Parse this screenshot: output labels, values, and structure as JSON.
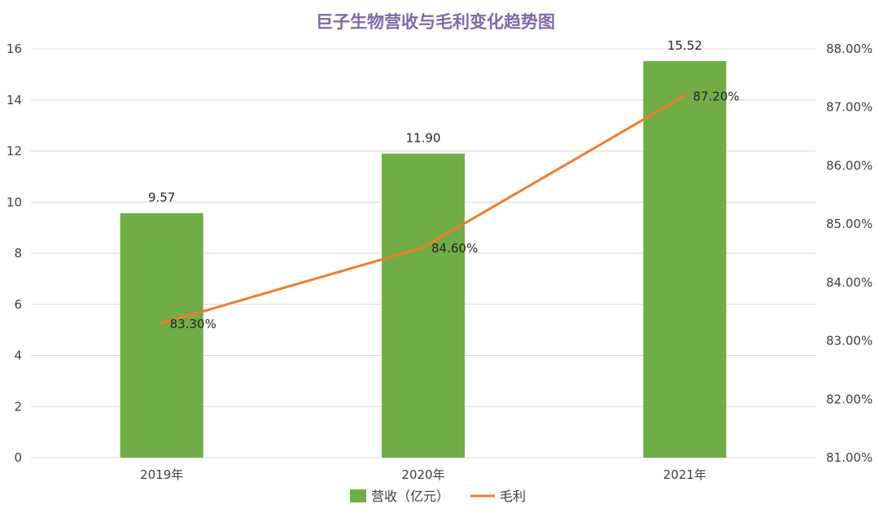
{
  "chart_data": {
    "type": "bar+line",
    "title": "巨子生物营收与毛利变化趋势图",
    "categories": [
      "2019年",
      "2020年",
      "2021年"
    ],
    "series": [
      {
        "name": "营收（亿元）",
        "type": "bar",
        "axis": "left",
        "values": [
          9.57,
          11.9,
          15.52
        ],
        "labels": [
          "9.57",
          "11.90",
          "15.52"
        ],
        "color": "#70ad47"
      },
      {
        "name": "毛利",
        "type": "line",
        "axis": "right",
        "values": [
          83.3,
          84.6,
          87.2
        ],
        "labels": [
          "83.30%",
          "84.60%",
          "87.20%"
        ],
        "color": "#ed7d31"
      }
    ],
    "left_axis": {
      "ylim": [
        0,
        16
      ],
      "ticks": [
        "0",
        "2",
        "4",
        "6",
        "8",
        "10",
        "12",
        "14",
        "16"
      ]
    },
    "right_axis": {
      "ylim": [
        81,
        88
      ],
      "ticks": [
        "81.00%",
        "82.00%",
        "83.00%",
        "84.00%",
        "85.00%",
        "86.00%",
        "87.00%",
        "88.00%"
      ]
    },
    "grid": true,
    "legend_position": "bottom",
    "gridline_color": "#d9d9d9"
  }
}
